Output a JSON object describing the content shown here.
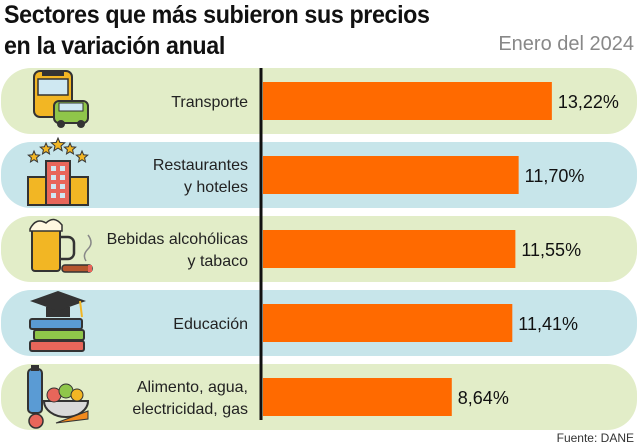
{
  "title_line1": "Sectores que más subieron sus precios",
  "title_line2": "en la variación anual",
  "subtitle": "Enero del 2024",
  "source": "Fuente: DANE",
  "colors": {
    "bar": "#ff6a00",
    "row_green": "#e2edc8",
    "row_blue": "#c7e5ea",
    "axis": "#111111"
  },
  "chart_data": {
    "type": "bar",
    "orientation": "horizontal",
    "categories": [
      [
        "Transporte"
      ],
      [
        "Restaurantes",
        "y hoteles"
      ],
      [
        "Bebidas alcohólicas",
        "y tabaco"
      ],
      [
        "Educación"
      ],
      [
        "Alimento, agua,",
        "electricidad, gas"
      ]
    ],
    "values": [
      13.22,
      11.7,
      11.55,
      11.41,
      8.64
    ],
    "value_labels": [
      "13,22%",
      "11,70%",
      "11,55%",
      "11,41%",
      "8,64%"
    ],
    "icons": [
      "bus-car-icon",
      "hotel-stars-icon",
      "beer-cigar-icon",
      "books-graduation-icon",
      "food-vegetables-icon"
    ]
  }
}
